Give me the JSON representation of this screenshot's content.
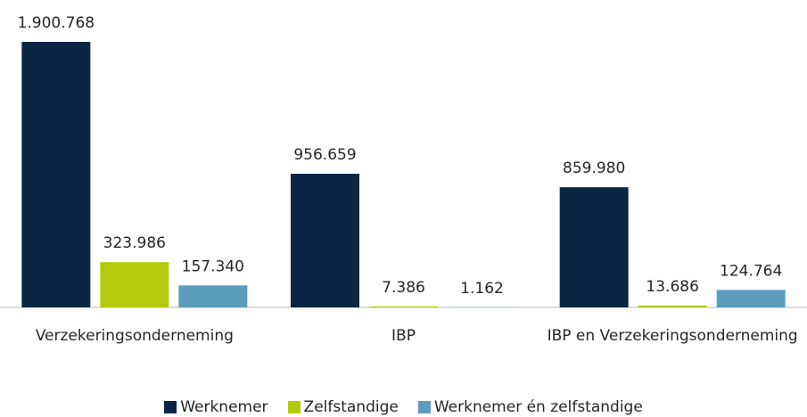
{
  "chart_data": {
    "type": "bar",
    "categories": [
      "Verzekeringsonderneming",
      "IBP",
      "IBP en Verzekeringsonderneming"
    ],
    "series": [
      {
        "name": "Werknemer",
        "color": "#0b2545",
        "values": [
          1900768,
          956659,
          859980
        ],
        "value_labels": [
          "1.900.768",
          "956.659",
          "859.980"
        ]
      },
      {
        "name": "Zelfstandige",
        "color": "#b3cb0a",
        "values": [
          323986,
          7386,
          13686
        ],
        "value_labels": [
          "323.986",
          "7.386",
          "13.686"
        ]
      },
      {
        "name": "Werknemer én zelfstandige",
        "color": "#5c9dbd",
        "values": [
          157340,
          1162,
          124764
        ],
        "value_labels": [
          "157.340",
          "1.162",
          "124.764"
        ]
      }
    ],
    "legend": "bottom"
  }
}
